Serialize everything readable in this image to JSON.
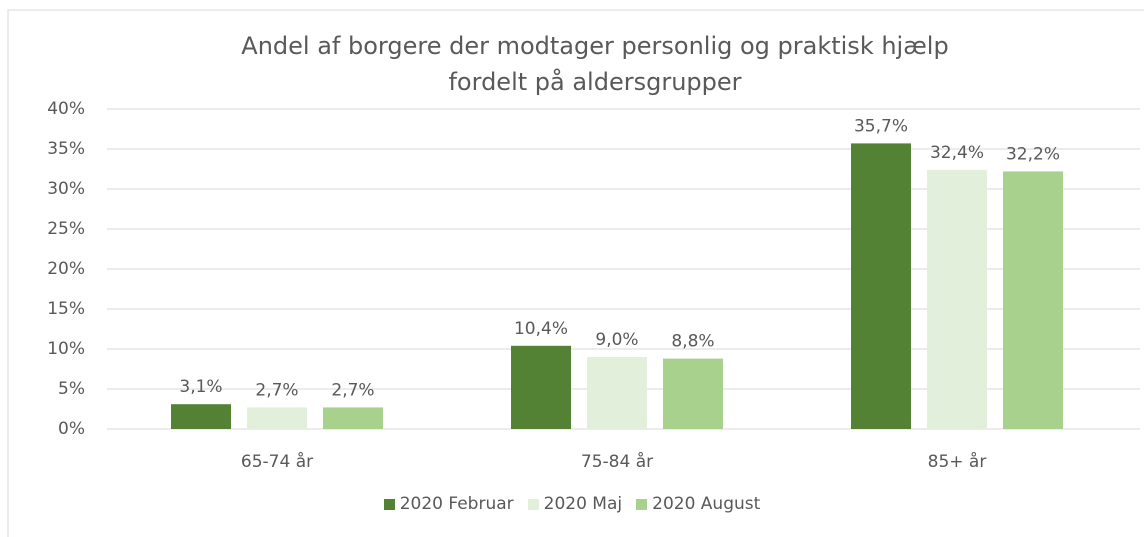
{
  "chart_data": {
    "type": "bar",
    "title": "Andel af borgere der modtager personlig og praktisk hjælp fordelt på aldersgrupper",
    "categories": [
      "65-74 år",
      "75-84 år",
      "85+ år"
    ],
    "series": [
      {
        "name": "2020 Februar",
        "color": "#548235",
        "values": [
          3.1,
          10.4,
          35.7
        ],
        "value_labels": [
          "3,1%",
          "10,4%",
          "35,7%"
        ]
      },
      {
        "name": "2020 Maj",
        "color": "#e2efda",
        "values": [
          2.7,
          9.0,
          32.4
        ],
        "value_labels": [
          "2,7%",
          "9,0%",
          "32,4%"
        ]
      },
      {
        "name": "2020 August",
        "color": "#a9d18e",
        "values": [
          2.7,
          8.8,
          32.2
        ],
        "value_labels": [
          "2,7%",
          "8,8%",
          "32,2%"
        ]
      }
    ],
    "ylim": [
      0,
      40
    ],
    "yticks": [
      {
        "value": 0,
        "label": "0%"
      },
      {
        "value": 5,
        "label": "5%"
      },
      {
        "value": 10,
        "label": "10%"
      },
      {
        "value": 15,
        "label": "15%"
      },
      {
        "value": 20,
        "label": "20%"
      },
      {
        "value": 25,
        "label": "25%"
      },
      {
        "value": 30,
        "label": "30%"
      },
      {
        "value": 35,
        "label": "35%"
      },
      {
        "value": 40,
        "label": "40%"
      }
    ],
    "grid": true,
    "legend": "bottom"
  }
}
